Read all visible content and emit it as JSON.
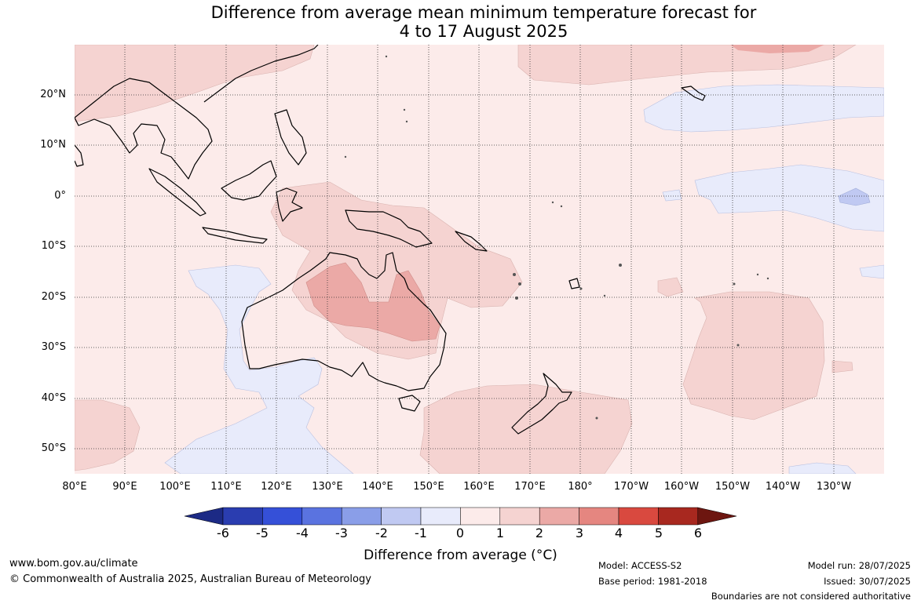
{
  "title_line1": "Difference from average mean minimum temperature forecast for",
  "title_line2": "4 to 17 August 2025",
  "latitude_labels": [
    "20°N",
    "10°N",
    "0°",
    "10°S",
    "20°S",
    "30°S",
    "40°S",
    "50°S"
  ],
  "longitude_labels": [
    "80°E",
    "90°E",
    "100°E",
    "110°E",
    "120°E",
    "130°E",
    "140°E",
    "150°E",
    "160°E",
    "170°E",
    "180°",
    "170°W",
    "160°W",
    "150°W",
    "140°W",
    "130°W"
  ],
  "colorbar": {
    "ticks": [
      "-6",
      "-5",
      "-4",
      "-3",
      "-2",
      "-1",
      "0",
      "1",
      "2",
      "3",
      "4",
      "5",
      "6"
    ],
    "colors": [
      "#1c2a85",
      "#2a3db0",
      "#3550d8",
      "#5a73e0",
      "#8a9ee8",
      "#c0c9f2",
      "#e8ebfb",
      "#fcebea",
      "#f5d3d1",
      "#eba9a6",
      "#e58680",
      "#d9493f",
      "#a8281f",
      "#6d1610"
    ],
    "label": "Difference from average (",
    "label_unit": "°C)"
  },
  "footer": {
    "website": "www.bom.gov.au/climate",
    "copyright": "© Commonwealth of Australia 2025, Australian Bureau of Meteorology",
    "model": "Model: ACCESS-S2",
    "base_period": "Base period: 1981-2018",
    "model_run": "Model run: 28/07/2025",
    "issued": "Issued: 30/07/2025",
    "disclaimer": "Boundaries are not considered authoritative"
  },
  "map_colors": {
    "ocean_base": "#fcebea",
    "warm_1_2": "#f5d3d1",
    "warm_2_3": "#eba9a6",
    "cool_0_1": "#e8ebfb",
    "cool_1_2": "#c0c9f2",
    "coastline": "#000000"
  }
}
